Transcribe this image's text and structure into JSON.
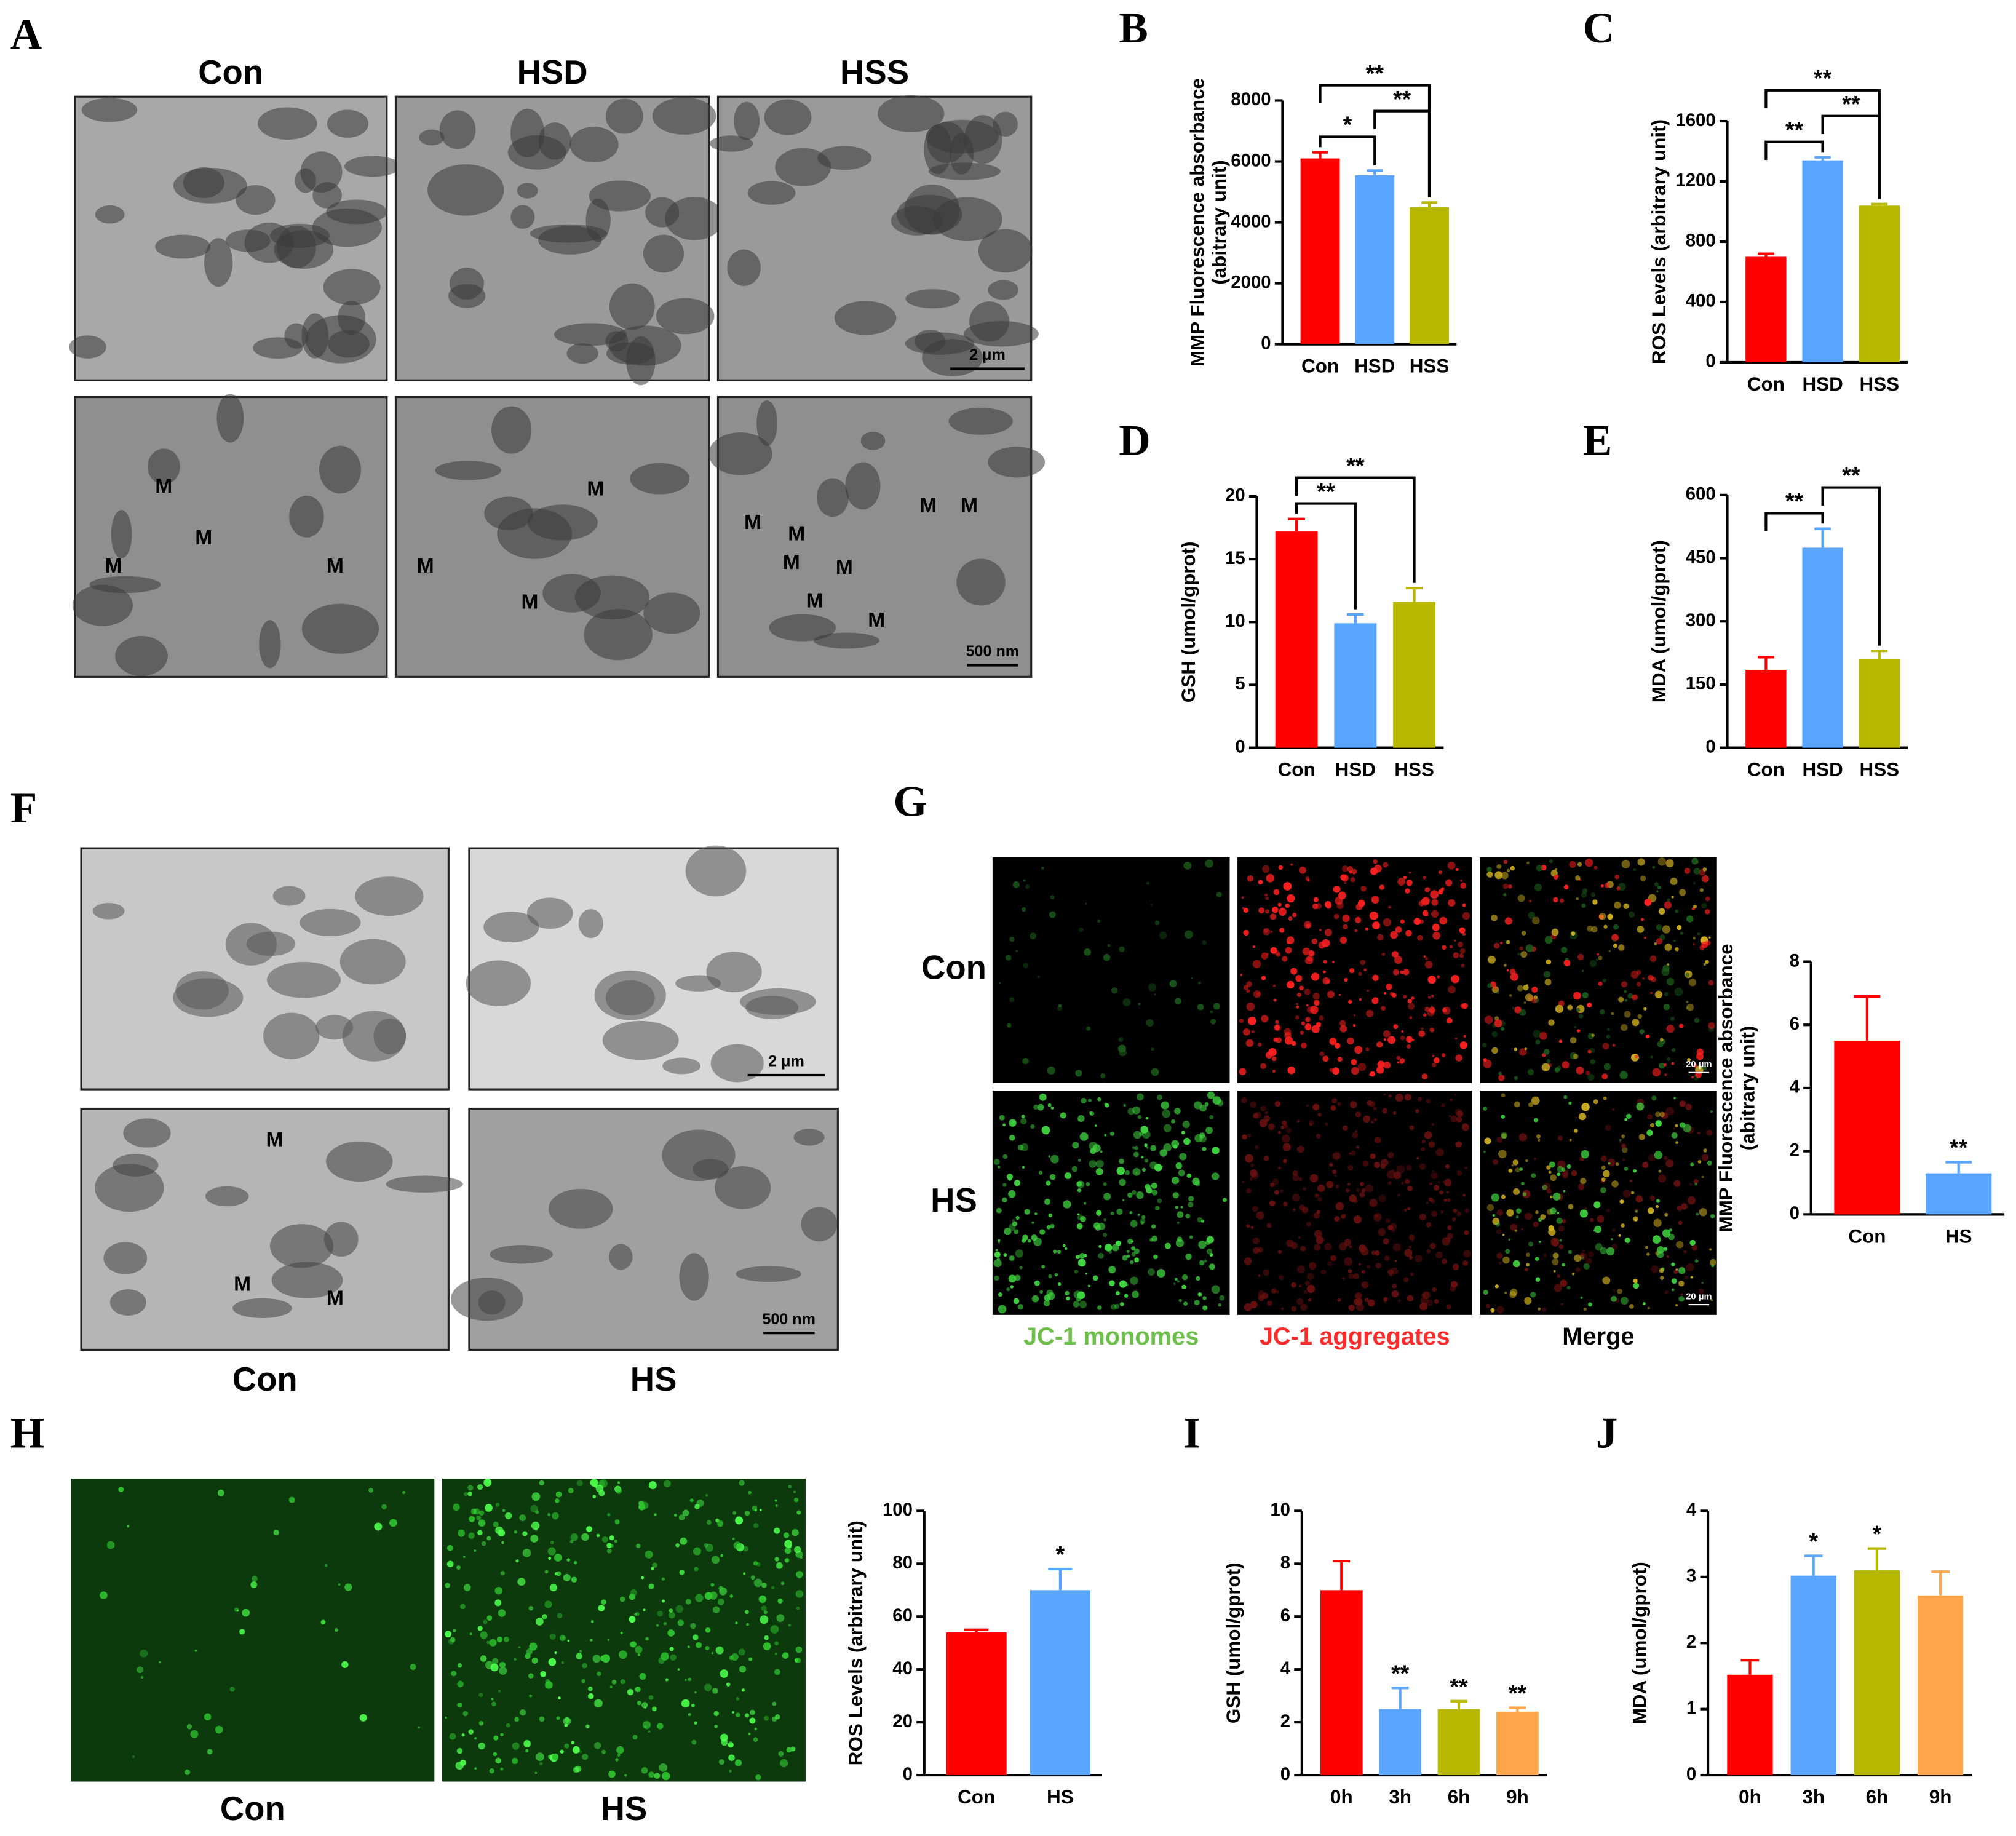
{
  "figure": {
    "panel_a": {
      "label": "A",
      "columns": [
        "Con",
        "HSD",
        "HSS"
      ],
      "scale_bars": [
        "2 μm",
        "500 nm"
      ],
      "mito": "M"
    },
    "panel_f": {
      "label": "F",
      "columns": [
        "Con",
        "HS"
      ],
      "scale_bars": [
        "2 μm",
        "500 nm"
      ],
      "mito": "M"
    },
    "panel_g": {
      "label": "G",
      "rows": [
        "Con",
        "HS"
      ],
      "columns": [
        "JC-1 monomes",
        "JC-1 aggregates",
        "Merge"
      ],
      "column_colors": [
        "#6cc04a",
        "#ff2a2a",
        "#000000"
      ],
      "scale_bar": "20 μm"
    },
    "panel_h": {
      "label": "H",
      "columns": [
        "Con",
        "HS"
      ]
    }
  },
  "chart_data": [
    {
      "type": "bar",
      "panel": "B",
      "ylabel": [
        "MMP Fluorescence absorbance",
        "(abitrary unit)"
      ],
      "categories": [
        "Con",
        "HSD",
        "HSS"
      ],
      "values": [
        6100,
        5550,
        4500
      ],
      "errors": [
        200,
        150,
        150
      ],
      "colors": [
        "#ff0000",
        "#5aa5ff",
        "#b8b800"
      ],
      "ylim": [
        0,
        8000
      ],
      "yticks": [
        0,
        2000,
        4000,
        6000,
        8000
      ],
      "comparisons": [
        {
          "pair": [
            0,
            1
          ],
          "text": "*"
        },
        {
          "pair": [
            1,
            2
          ],
          "text": "**"
        },
        {
          "pair": [
            0,
            2
          ],
          "text": "**"
        }
      ]
    },
    {
      "type": "bar",
      "panel": "C",
      "ylabel": [
        "ROS Levels (arbitrary unit)"
      ],
      "categories": [
        "Con",
        "HSD",
        "HSS"
      ],
      "values": [
        700,
        1340,
        1040
      ],
      "errors": [
        20,
        20,
        10
      ],
      "colors": [
        "#ff0000",
        "#5aa5ff",
        "#b8b800"
      ],
      "ylim": [
        0,
        1600
      ],
      "yticks": [
        0,
        400,
        800,
        1200,
        1600
      ],
      "comparisons": [
        {
          "pair": [
            0,
            1
          ],
          "text": "**"
        },
        {
          "pair": [
            1,
            2
          ],
          "text": "**"
        },
        {
          "pair": [
            0,
            2
          ],
          "text": "**"
        }
      ]
    },
    {
      "type": "bar",
      "panel": "D",
      "ylabel": [
        "GSH (umol/gprot)"
      ],
      "categories": [
        "Con",
        "HSD",
        "HSS"
      ],
      "values": [
        17.2,
        9.9,
        11.6
      ],
      "errors": [
        1.0,
        0.7,
        1.1
      ],
      "colors": [
        "#ff0000",
        "#5aa5ff",
        "#b8b800"
      ],
      "ylim": [
        0,
        20
      ],
      "yticks": [
        0,
        5,
        10,
        15,
        20
      ],
      "comparisons": [
        {
          "pair": [
            0,
            1
          ],
          "text": "**"
        },
        {
          "pair": [
            0,
            2
          ],
          "text": "**"
        }
      ]
    },
    {
      "type": "bar",
      "panel": "E",
      "ylabel": [
        "MDA (umol/gprot)"
      ],
      "categories": [
        "Con",
        "HSD",
        "HSS"
      ],
      "values": [
        185,
        475,
        210
      ],
      "errors": [
        30,
        45,
        20
      ],
      "colors": [
        "#ff0000",
        "#5aa5ff",
        "#b8b800"
      ],
      "ylim": [
        0,
        600
      ],
      "yticks": [
        0,
        150,
        300,
        450,
        600
      ],
      "comparisons": [
        {
          "pair": [
            0,
            1
          ],
          "text": "**"
        },
        {
          "pair": [
            1,
            2
          ],
          "text": "**"
        }
      ]
    },
    {
      "type": "bar",
      "ylabel": [
        "MMP Fluorescence absorbance",
        "(abitrary unit)"
      ],
      "categories": [
        "Con",
        "HS"
      ],
      "values": [
        5.5,
        1.3
      ],
      "errors": [
        1.4,
        0.35
      ],
      "colors": [
        "#ff0000",
        "#5aa5ff"
      ],
      "ylim": [
        0,
        8
      ],
      "yticks": [
        0,
        2,
        4,
        6,
        8
      ],
      "annotations": [
        {
          "category": 1,
          "text": "**"
        }
      ]
    },
    {
      "type": "bar",
      "ylabel": [
        "ROS Levels (arbitrary unit)"
      ],
      "categories": [
        "Con",
        "HS"
      ],
      "values": [
        54,
        70
      ],
      "errors": [
        1,
        8
      ],
      "colors": [
        "#ff0000",
        "#5aa5ff"
      ],
      "ylim": [
        0,
        100
      ],
      "yticks": [
        0,
        20,
        40,
        60,
        80,
        100
      ],
      "annotations": [
        {
          "category": 1,
          "text": "*"
        }
      ]
    },
    {
      "type": "bar",
      "panel": "I",
      "ylabel": [
        "GSH (umol/gprot)"
      ],
      "categories": [
        "0h",
        "3h",
        "6h",
        "9h"
      ],
      "values": [
        7.0,
        2.5,
        2.5,
        2.4
      ],
      "errors": [
        1.1,
        0.8,
        0.3,
        0.15
      ],
      "colors": [
        "#ff0000",
        "#5aa5ff",
        "#b8b800",
        "#ffa64d"
      ],
      "ylim": [
        0,
        10
      ],
      "yticks": [
        0,
        2,
        4,
        6,
        8,
        10
      ],
      "annotations": [
        {
          "category": 1,
          "text": "**"
        },
        {
          "category": 2,
          "text": "**"
        },
        {
          "category": 3,
          "text": "**"
        }
      ]
    },
    {
      "type": "bar",
      "panel": "J",
      "ylabel": [
        "MDA (umol/gprot)"
      ],
      "categories": [
        "0h",
        "3h",
        "6h",
        "9h"
      ],
      "values": [
        1.52,
        3.02,
        3.1,
        2.72
      ],
      "errors": [
        0.22,
        0.3,
        0.33,
        0.36
      ],
      "colors": [
        "#ff0000",
        "#5aa5ff",
        "#b8b800",
        "#ffa64d"
      ],
      "ylim": [
        0,
        4
      ],
      "yticks": [
        0,
        1,
        2,
        3,
        4
      ],
      "annotations": [
        {
          "category": 1,
          "text": "*"
        },
        {
          "category": 2,
          "text": "*"
        }
      ]
    }
  ]
}
